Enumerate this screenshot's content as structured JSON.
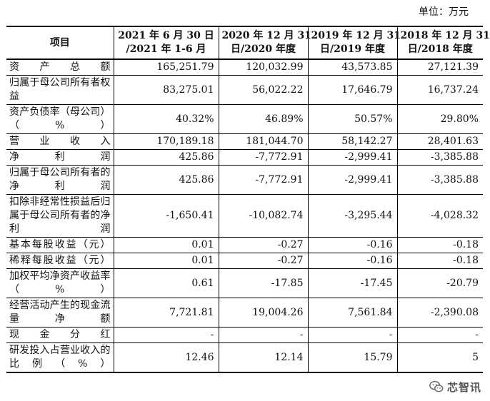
{
  "unit_label": "单位：万元",
  "headers": [
    {
      "l1": "项目",
      "l2": ""
    },
    {
      "l1": "2021 年 6 月 30 日",
      "l2": "/2021 年 1-6 月"
    },
    {
      "l1": "2020 年 12 月 31",
      "l2": "日/2020 年度"
    },
    {
      "l1": "2019 年 12 月 31",
      "l2": "日/2019 年度"
    },
    {
      "l1": "2018 年 12 月 31",
      "l2": "日/2018 年度"
    }
  ],
  "rows": [
    {
      "item": "资产总额",
      "values": [
        "165,251.79",
        "120,032.99",
        "43,573.85",
        "27,121.39"
      ]
    },
    {
      "item": "归属于母公司所有者权益",
      "values": [
        "83,275.01",
        "56,022.22",
        "17,646.79",
        "16,737.24"
      ]
    },
    {
      "item": "资产负债率（母公司）（%）",
      "values": [
        "40.32%",
        "46.89%",
        "50.57%",
        "29.80%"
      ]
    },
    {
      "item": "营业收入",
      "values": [
        "170,189.18",
        "181,044.70",
        "58,142.27",
        "28,401.63"
      ]
    },
    {
      "item": "净利润",
      "values": [
        "425.86",
        "-7,772.91",
        "-2,999.41",
        "-3,385.88"
      ]
    },
    {
      "item": "归属于母公司所有者的净利润",
      "values": [
        "425.86",
        "-7,772.91",
        "-2,999.41",
        "-3,385.88"
      ]
    },
    {
      "item": "扣除非经常性损益后归属于母公司所有者的净利润",
      "values": [
        "-1,650.41",
        "-10,082.74",
        "-3,295.44",
        "-4,028.32"
      ]
    },
    {
      "item": "基本每股收益（元）",
      "values": [
        "0.01",
        "-0.27",
        "-0.16",
        "-0.18"
      ]
    },
    {
      "item": "稀释每股收益（元）",
      "values": [
        "0.01",
        "-0.27",
        "-0.16",
        "-0.18"
      ]
    },
    {
      "item": "加权平均净资产收益率（%）",
      "values": [
        "0.61",
        "-17.85",
        "-17.45",
        "-20.79"
      ]
    },
    {
      "item": "经营活动产生的现金流量净额",
      "values": [
        "7,721.81",
        "19,004.26",
        "7,561.84",
        "-2,390.08"
      ]
    },
    {
      "item": "现金分红",
      "values": [
        "-",
        "-",
        "-",
        "-"
      ]
    },
    {
      "item": "研发投入占营业收入的比例（%）",
      "values": [
        "12.46",
        "12.14",
        "15.79",
        "5"
      ]
    }
  ],
  "watermark": {
    "text": "芯智讯",
    "icon": "wechat-icon"
  }
}
